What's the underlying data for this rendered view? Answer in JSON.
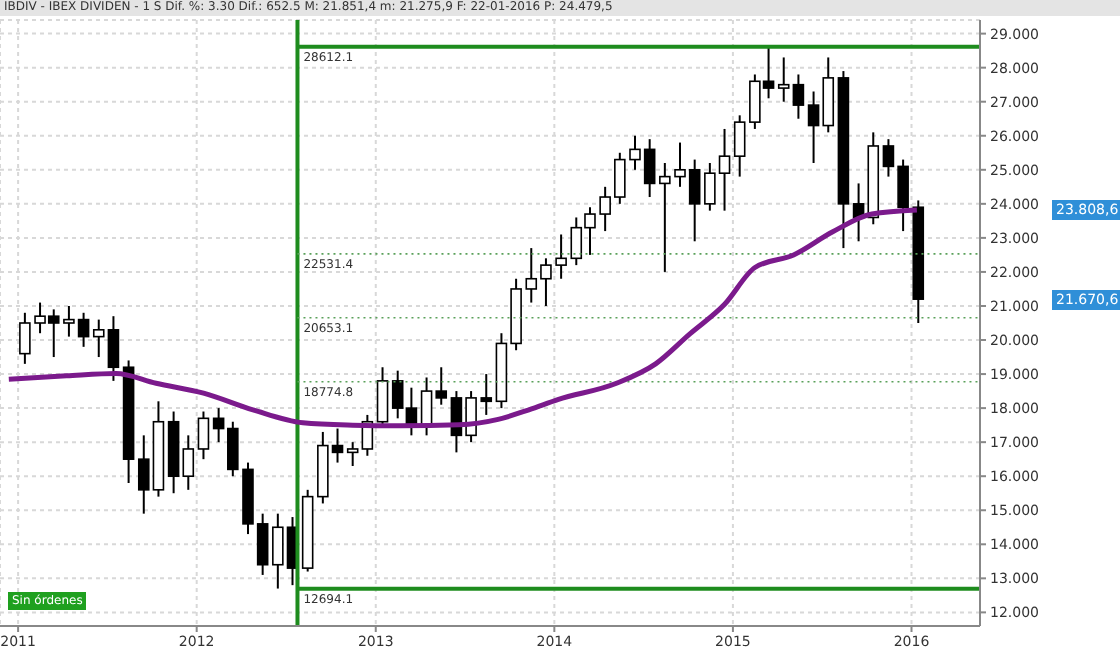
{
  "chart_data": {
    "type": "candlestick",
    "title": "IBDIV - IBEX DIVIDEN - 1 S Dif. %: 3.30 Dif.: 652.5 M: 21.851,4 m: 21.275,9 F: 22-01-2016 P: 24.479,5",
    "x": [
      "2011-01-15",
      "2011-02-15",
      "2011-03-15",
      "2011-04-15",
      "2011-05-15",
      "2011-06-15",
      "2011-07-15",
      "2011-08-15",
      "2011-09-15",
      "2011-10-15",
      "2011-11-15",
      "2011-12-15",
      "2012-01-15",
      "2012-02-15",
      "2012-03-15",
      "2012-04-15",
      "2012-05-15",
      "2012-06-15",
      "2012-07-15",
      "2012-08-15",
      "2012-09-15",
      "2012-10-15",
      "2012-11-15",
      "2012-12-15",
      "2013-01-15",
      "2013-02-15",
      "2013-03-15",
      "2013-04-15",
      "2013-05-15",
      "2013-06-15",
      "2013-07-15",
      "2013-08-15",
      "2013-09-15",
      "2013-10-15",
      "2013-11-15",
      "2013-12-15",
      "2014-01-15",
      "2014-02-15",
      "2014-03-15",
      "2014-04-15",
      "2014-05-15",
      "2014-06-15",
      "2014-07-15",
      "2014-08-15",
      "2014-09-15",
      "2014-10-15",
      "2014-11-15",
      "2014-12-15",
      "2015-01-15",
      "2015-02-15",
      "2015-03-15",
      "2015-04-15",
      "2015-05-15",
      "2015-06-15",
      "2015-07-15",
      "2015-08-15",
      "2015-09-15",
      "2015-10-15",
      "2015-11-15",
      "2015-12-15",
      "2016-01-15"
    ],
    "ohlc": [
      [
        19.6,
        20.8,
        19.3,
        20.5
      ],
      [
        20.5,
        21.1,
        20.2,
        20.7
      ],
      [
        20.7,
        20.9,
        19.5,
        20.5
      ],
      [
        20.5,
        21.0,
        20.1,
        20.6
      ],
      [
        20.6,
        20.8,
        19.8,
        20.1
      ],
      [
        20.1,
        20.6,
        19.5,
        20.3
      ],
      [
        20.3,
        20.7,
        18.8,
        19.2
      ],
      [
        19.2,
        19.4,
        15.8,
        16.5
      ],
      [
        16.5,
        17.2,
        14.9,
        15.6
      ],
      [
        15.6,
        18.2,
        15.4,
        17.6
      ],
      [
        17.6,
        17.9,
        15.5,
        16.0
      ],
      [
        16.0,
        17.2,
        15.6,
        16.8
      ],
      [
        16.8,
        17.9,
        16.5,
        17.7
      ],
      [
        17.7,
        18.0,
        17.0,
        17.4
      ],
      [
        17.4,
        17.6,
        16.0,
        16.2
      ],
      [
        16.2,
        16.4,
        14.3,
        14.6
      ],
      [
        14.6,
        14.9,
        13.1,
        13.4
      ],
      [
        13.4,
        14.9,
        12.7,
        14.5
      ],
      [
        14.5,
        14.8,
        12.8,
        13.3
      ],
      [
        13.3,
        15.6,
        13.2,
        15.4
      ],
      [
        15.4,
        17.3,
        15.2,
        16.9
      ],
      [
        16.9,
        17.4,
        16.4,
        16.7
      ],
      [
        16.7,
        17.0,
        16.3,
        16.8
      ],
      [
        16.8,
        17.8,
        16.6,
        17.6
      ],
      [
        17.6,
        19.2,
        17.5,
        18.8
      ],
      [
        18.8,
        19.1,
        17.7,
        18.0
      ],
      [
        18.0,
        18.6,
        17.2,
        17.5
      ],
      [
        17.5,
        18.9,
        17.2,
        18.5
      ],
      [
        18.5,
        19.2,
        18.1,
        18.3
      ],
      [
        18.3,
        18.5,
        16.7,
        17.2
      ],
      [
        17.2,
        18.5,
        17.0,
        18.3
      ],
      [
        18.3,
        19.0,
        17.8,
        18.2
      ],
      [
        18.2,
        20.2,
        18.0,
        19.9
      ],
      [
        19.9,
        21.8,
        19.7,
        21.5
      ],
      [
        21.5,
        22.7,
        21.1,
        21.8
      ],
      [
        21.8,
        22.4,
        21.0,
        22.2
      ],
      [
        22.2,
        23.1,
        21.8,
        22.4
      ],
      [
        22.4,
        23.6,
        22.2,
        23.3
      ],
      [
        23.3,
        23.9,
        22.5,
        23.7
      ],
      [
        23.7,
        24.5,
        23.2,
        24.2
      ],
      [
        24.2,
        25.5,
        24.0,
        25.3
      ],
      [
        25.3,
        26.0,
        25.0,
        25.6
      ],
      [
        25.6,
        25.9,
        24.2,
        24.6
      ],
      [
        24.6,
        25.2,
        22.0,
        24.8
      ],
      [
        24.8,
        25.8,
        24.5,
        25.0
      ],
      [
        25.0,
        25.3,
        22.9,
        24.0
      ],
      [
        24.0,
        25.2,
        23.8,
        24.9
      ],
      [
        24.9,
        26.2,
        23.8,
        25.4
      ],
      [
        25.4,
        26.6,
        24.8,
        26.4
      ],
      [
        26.4,
        27.8,
        26.2,
        27.6
      ],
      [
        27.6,
        28.6,
        27.1,
        27.4
      ],
      [
        27.4,
        28.3,
        27.0,
        27.5
      ],
      [
        27.5,
        27.8,
        26.5,
        26.9
      ],
      [
        26.9,
        27.3,
        25.2,
        26.3
      ],
      [
        26.3,
        28.3,
        26.1,
        27.7
      ],
      [
        27.7,
        27.9,
        22.7,
        24.0
      ],
      [
        24.0,
        24.6,
        22.9,
        23.6
      ],
      [
        23.6,
        26.1,
        23.4,
        25.7
      ],
      [
        25.7,
        25.9,
        24.8,
        25.1
      ],
      [
        25.1,
        25.3,
        23.2,
        23.9
      ],
      [
        23.9,
        24.1,
        20.5,
        21.2
      ]
    ],
    "color": "#000000",
    "series": [
      {
        "type": "line",
        "color": "#7b1a8c",
        "x": [
          "2010-12-13",
          "2011-04-10",
          "2011-07-20",
          "2011-10-10",
          "2012-01-15",
          "2012-04-25",
          "2012-08-05",
          "2012-11-15",
          "2013-02-20",
          "2013-06-20",
          "2013-09-08",
          "2013-11-10",
          "2014-01-08",
          "2014-05-08",
          "2014-07-27",
          "2014-10-05",
          "2014-12-15",
          "2015-02-15",
          "2015-05-05",
          "2015-07-24",
          "2015-10-12",
          "2016-01-12"
        ],
        "values": [
          18.85,
          18.95,
          19.02,
          18.73,
          18.44,
          17.95,
          17.57,
          17.5,
          17.48,
          17.51,
          17.67,
          17.95,
          18.25,
          18.73,
          19.3,
          20.18,
          21.05,
          22.13,
          22.5,
          23.18,
          23.7,
          23.82
        ]
      }
    ],
    "xlim": [
      "2010-11-25",
      "2016-05-20"
    ],
    "xticks": [
      {
        "value": "2011-01-01",
        "label": "2011"
      },
      {
        "value": "2012-01-01",
        "label": "2012"
      },
      {
        "value": "2013-01-01",
        "label": "2013"
      },
      {
        "value": "2014-01-01",
        "label": "2014"
      },
      {
        "value": "2015-01-01",
        "label": "2015"
      },
      {
        "value": "2016-01-01",
        "label": "2016"
      }
    ],
    "ylim": [
      11.6,
      29.4
    ],
    "yticks": [
      {
        "value": 12,
        "label": "12.000"
      },
      {
        "value": 13,
        "label": "13.000"
      },
      {
        "value": 14,
        "label": "14.000"
      },
      {
        "value": 15,
        "label": "15.000"
      },
      {
        "value": 16,
        "label": "16.000"
      },
      {
        "value": 17,
        "label": "17.000"
      },
      {
        "value": 18,
        "label": "18.000"
      },
      {
        "value": 19,
        "label": "19.000"
      },
      {
        "value": 20,
        "label": "20.000"
      },
      {
        "value": 21,
        "label": "21.000"
      },
      {
        "value": 22,
        "label": "22.000"
      },
      {
        "value": 23,
        "label": "23.000"
      },
      {
        "value": 24,
        "label": "24.000"
      },
      {
        "value": 25,
        "label": "25.000"
      },
      {
        "value": 26,
        "label": "26.000"
      },
      {
        "value": 27,
        "label": "27.000"
      },
      {
        "value": 28,
        "label": "28.000"
      },
      {
        "value": 29,
        "label": "29.000"
      }
    ],
    "grid": true,
    "ref_lines": [
      {
        "axis": "x",
        "value": "2012-07-25",
        "color": "#1e8c1e",
        "line_style": "solid"
      },
      {
        "axis": "y",
        "value": 28.6121,
        "label": "28612.1",
        "color": "#1e8c1e",
        "line_style": "solid"
      },
      {
        "axis": "y",
        "value": 22.5314,
        "label": "22531.4",
        "color": "#5aa05a",
        "line_style": "dotted"
      },
      {
        "axis": "y",
        "value": 20.6531,
        "label": "20653.1",
        "color": "#5aa05a",
        "line_style": "dotted"
      },
      {
        "axis": "y",
        "value": 18.7748,
        "label": "18774.8",
        "color": "#5aa05a",
        "line_style": "dotted"
      },
      {
        "axis": "y",
        "value": 12.6941,
        "label": "12694.1",
        "color": "#1e8c1e",
        "line_style": "solid"
      }
    ],
    "annotations": [
      "Sin órdenes",
      "23.808,6",
      "21.670,6"
    ]
  }
}
